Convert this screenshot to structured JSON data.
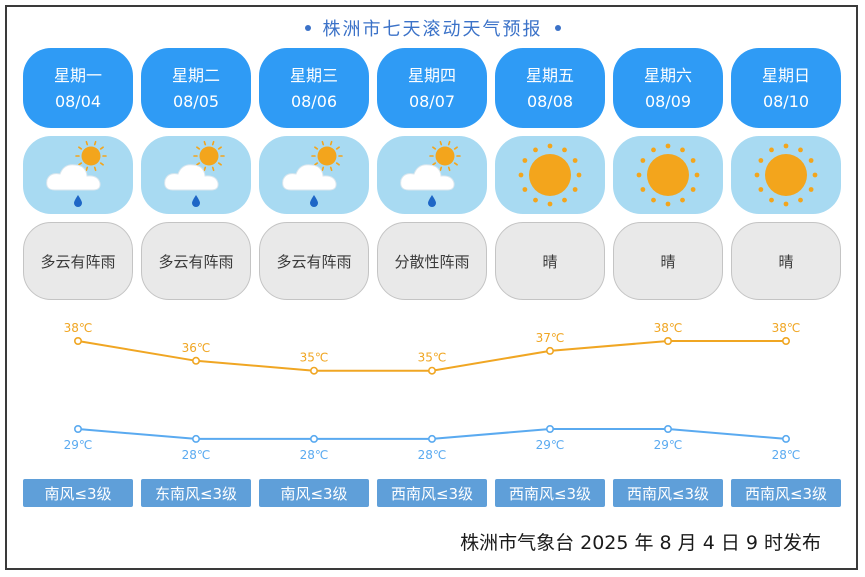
{
  "title": "株洲市七天滚动天气预报",
  "days": [
    {
      "weekday": "星期一",
      "date": "08/04",
      "condition": "多云有阵雨",
      "icon": "cloud-sun-rain-icon",
      "high": "38℃",
      "low": "29℃",
      "wind": "南风≤3级"
    },
    {
      "weekday": "星期二",
      "date": "08/05",
      "condition": "多云有阵雨",
      "icon": "cloud-sun-rain-icon",
      "high": "36℃",
      "low": "28℃",
      "wind": "东南风≤3级"
    },
    {
      "weekday": "星期三",
      "date": "08/06",
      "condition": "多云有阵雨",
      "icon": "cloud-sun-rain-icon",
      "high": "35℃",
      "low": "28℃",
      "wind": "南风≤3级"
    },
    {
      "weekday": "星期四",
      "date": "08/07",
      "condition": "分散性阵雨",
      "icon": "cloud-sun-rain-icon",
      "high": "35℃",
      "low": "28℃",
      "wind": "西南风≤3级"
    },
    {
      "weekday": "星期五",
      "date": "08/08",
      "condition": "晴",
      "icon": "sun-icon",
      "high": "37℃",
      "low": "29℃",
      "wind": "西南风≤3级"
    },
    {
      "weekday": "星期六",
      "date": "08/09",
      "condition": "晴",
      "icon": "sun-icon",
      "high": "38℃",
      "low": "29℃",
      "wind": "西南风≤3级"
    },
    {
      "weekday": "星期日",
      "date": "08/10",
      "condition": "晴",
      "icon": "sun-icon",
      "high": "38℃",
      "low": "28℃",
      "wind": "西南风≤3级"
    }
  ],
  "chart_data": {
    "type": "line",
    "categories": [
      "08/04",
      "08/05",
      "08/06",
      "08/07",
      "08/08",
      "08/09",
      "08/10"
    ],
    "series": [
      {
        "values": [
          38,
          36,
          35,
          35,
          37,
          38,
          38
        ],
        "color": "#f0a623"
      },
      {
        "values": [
          29,
          28,
          28,
          28,
          29,
          29,
          28
        ],
        "color": "#5aaaf0"
      }
    ],
    "unit": "℃"
  },
  "colors": {
    "title": "#3b72c8",
    "day_card": "#2f9bf5",
    "icon_card": "#a8daf2",
    "condition_card": "#e9e9e9",
    "wind_bar": "#5f9fd9",
    "high_line": "#f0a623",
    "low_line": "#5aaaf0"
  },
  "footer": "株洲市气象台 2025 年 8 月 4 日 9 时发布"
}
